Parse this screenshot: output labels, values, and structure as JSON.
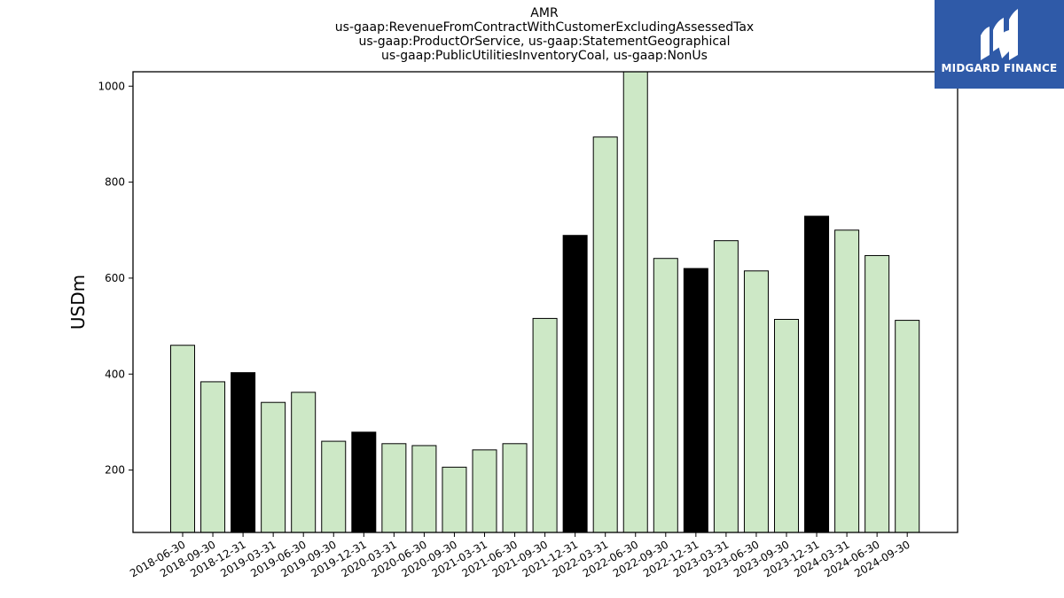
{
  "chart_data": {
    "type": "bar",
    "title_lines": [
      "AMR",
      "us-gaap:RevenueFromContractWithCustomerExcludingAssessedTax",
      "us-gaap:ProductOrService, us-gaap:StatementGeographical",
      "us-gaap:PublicUtilitiesInventoryCoal, us-gaap:NonUs"
    ],
    "ylabel": "USDm",
    "xlabel": "",
    "ylim": [
      70,
      1030
    ],
    "yticks": [
      200,
      400,
      600,
      800,
      1000
    ],
    "categories": [
      "2018-06-30",
      "2018-09-30",
      "2018-12-31",
      "2019-03-31",
      "2019-06-30",
      "2019-09-30",
      "2019-12-31",
      "2020-03-31",
      "2020-06-30",
      "2020-09-30",
      "2021-03-31",
      "2021-06-30",
      "2021-09-30",
      "2021-12-31",
      "2022-03-31",
      "2022-06-30",
      "2022-09-30",
      "2022-12-31",
      "2023-03-31",
      "2023-06-30",
      "2023-09-30",
      "2023-12-31",
      "2024-03-31",
      "2024-06-30",
      "2024-09-30"
    ],
    "values": [
      460,
      384,
      403,
      341,
      362,
      260,
      279,
      255,
      251,
      206,
      242,
      255,
      516,
      689,
      894,
      1050,
      641,
      620,
      678,
      615,
      514,
      729,
      700,
      647,
      512
    ],
    "highlight": [
      false,
      false,
      true,
      false,
      false,
      false,
      true,
      false,
      false,
      false,
      false,
      false,
      false,
      true,
      false,
      false,
      false,
      true,
      false,
      false,
      false,
      true,
      false,
      false,
      false
    ],
    "colors": {
      "normal": "#cde8c6",
      "highlight": "#000000",
      "edge": "#000000"
    },
    "grid": false
  },
  "logo": {
    "text": "MIDGARD FINANCE",
    "background": "#2f5aa8"
  }
}
